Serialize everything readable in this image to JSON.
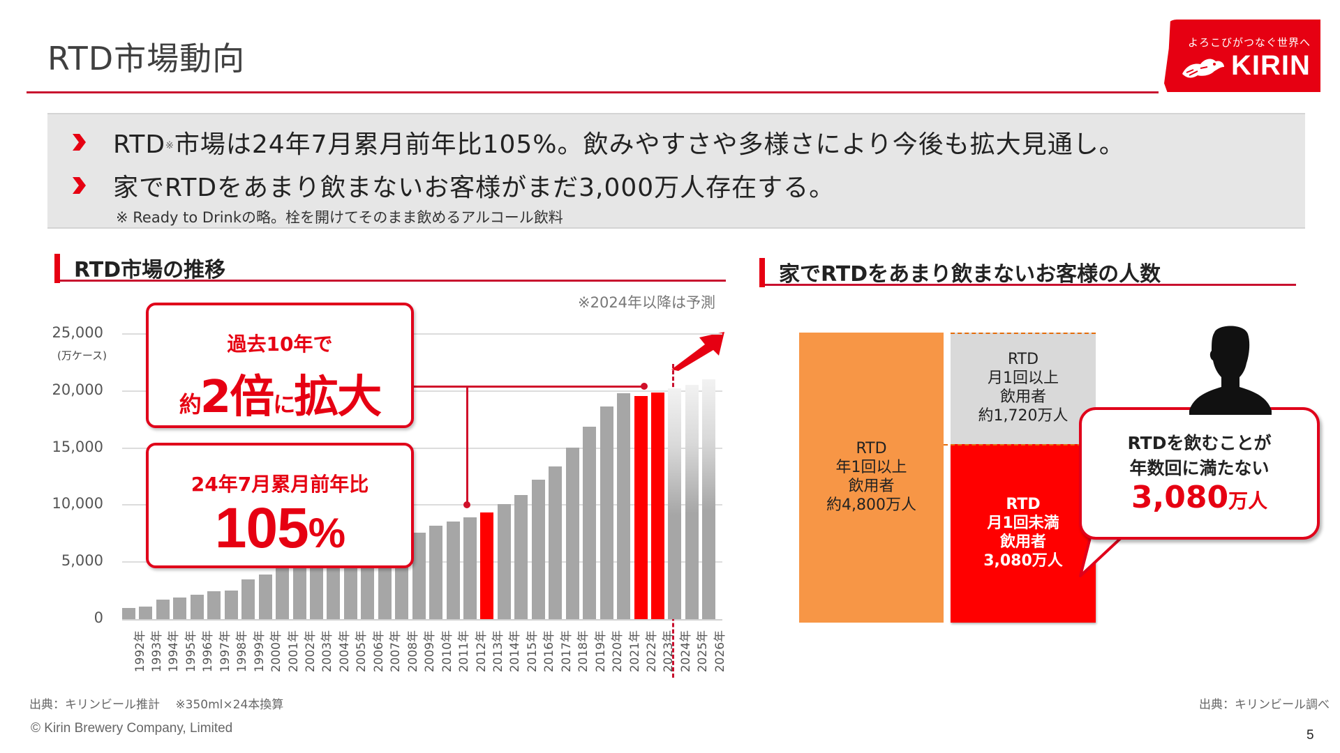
{
  "header": {
    "title": "RTD市場動向",
    "logo": {
      "tagline": "よろこびがつなぐ世界へ",
      "wordmark": "KIRIN",
      "icon": "kirin-mythical-beast-icon",
      "color": "#e60012"
    }
  },
  "summary": {
    "bullets": [
      {
        "pre": "RTD",
        "mark": "※",
        "post": "市場は24年7月累月前年比105%。飲みやすさや多様さにより今後も拡大見通し。"
      },
      {
        "pre": "家でRTDをあまり飲まないお客様がまだ3,000万人存在する。",
        "mark": "",
        "post": ""
      }
    ],
    "bullet_icon": "chevron-right-icon",
    "footnote": "※ Ready to Drinkの略。栓を開けてそのまま飲めるアルコール飲料"
  },
  "left_section": {
    "title": "RTD市場の推移",
    "forecast_note": "※2024年以降は予測",
    "callout_growth": {
      "line1": "過去10年で",
      "prefix": "約",
      "big": "2倍",
      "mid": "に",
      "suffix": "拡大"
    },
    "callout_yoy": {
      "line1": "24年7月累月前年比",
      "value": "105",
      "unit": "%"
    },
    "source": "出典：キリンビール推計　 ※350ml×24本換算"
  },
  "right_section": {
    "title": "家でRTDをあまり飲まないお客様の人数",
    "blocks": {
      "annual": [
        "RTD",
        "年1回以上",
        "飲用者",
        "約4,800万人"
      ],
      "monthly": [
        "RTD",
        "月1回以上",
        "飲用者",
        "約1,720万人"
      ],
      "less_monthly": [
        "RTD",
        "月1回未満",
        "飲用者",
        "3,080万人"
      ]
    },
    "bubble": {
      "line1": "RTDを飲むことが",
      "line2": "年数回に満たない",
      "value": "3,080",
      "unit": "万人"
    },
    "person_icon": "person-silhouette-icon",
    "source": "出典：キリンビール調べ"
  },
  "footer": {
    "copyright": "© Kirin  Brewery Company, Limited",
    "page_number": "5"
  },
  "colors": {
    "accent_red": "#e60012",
    "bar_gray": "#a6a6a6",
    "highlight_red": "#ff0000",
    "orange": "#f79646",
    "light_gray": "#d9d9d9",
    "summary_bg": "#e6e6e6"
  },
  "chart_data": [
    {
      "type": "bar",
      "title": "RTD市場の推移",
      "xlabel": "",
      "ylabel": "(万ケース)",
      "ylim": [
        0,
        25000
      ],
      "yticks": [
        "0",
        "5,000",
        "10,000",
        "15,000",
        "20,000",
        "25,000"
      ],
      "grid": true,
      "annotations": [
        "※2024年以降は予測",
        "過去10年で約2倍に拡大",
        "24年7月累月前年比105%"
      ],
      "categories": [
        "1992年",
        "1993年",
        "1994年",
        "1995年",
        "1996年",
        "1997年",
        "1998年",
        "1999年",
        "2000年",
        "2001年",
        "2002年",
        "2003年",
        "2004年",
        "2005年",
        "2006年",
        "2007年",
        "2008年",
        "2009年",
        "2010年",
        "2011年",
        "2012年",
        "2013年",
        "2014年",
        "2015年",
        "2016年",
        "2017年",
        "2018年",
        "2019年",
        "2020年",
        "2021年",
        "2022年",
        "2023年",
        "2024年",
        "2025年",
        "2026年"
      ],
      "values": [
        1020,
        1120,
        1730,
        1880,
        2140,
        2430,
        2530,
        3490,
        3920,
        4490,
        5840,
        6370,
        6920,
        7180,
        7220,
        6960,
        7080,
        7610,
        8220,
        8550,
        8940,
        9350,
        10060,
        10900,
        12240,
        13410,
        15020,
        16840,
        18650,
        19780,
        19530,
        19840,
        20200,
        20550,
        21000
      ],
      "highlighted": [
        "2013年",
        "2022年",
        "2023年"
      ],
      "forecast": [
        "2024年",
        "2025年",
        "2026年"
      ]
    },
    {
      "type": "table",
      "title": "家でRTDをあまり飲まないお客様の人数",
      "categories": [
        "RTD年1回以上飲用者",
        "RTD月1回以上飲用者",
        "RTD月1回未満飲用者"
      ],
      "values": [
        4800,
        1720,
        3080
      ],
      "unit": "万人"
    }
  ]
}
